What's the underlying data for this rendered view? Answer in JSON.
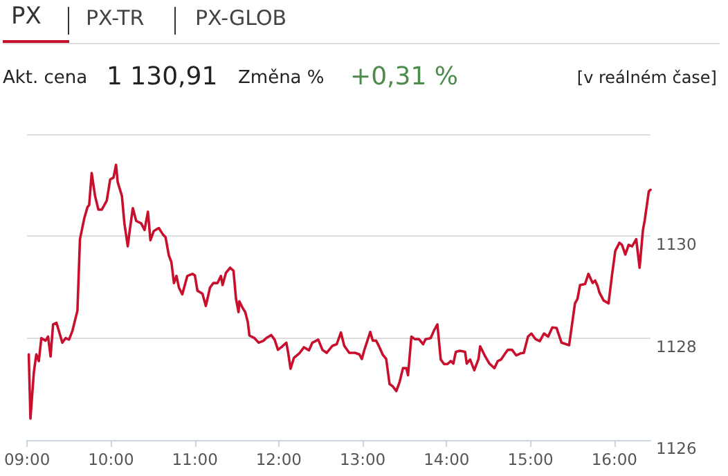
{
  "chart_data": {
    "type": "line",
    "annotations": [
      "PX",
      "PX-TR",
      "PX-GLOB",
      "Akt. cena",
      "1 130,91",
      "Změna %",
      "+0,31 %",
      "[v reálném čase]"
    ],
    "x": [
      9.02,
      9.04,
      9.08,
      9.11,
      9.14,
      9.17,
      9.22,
      9.25,
      9.28,
      9.31,
      9.35,
      9.42,
      9.46,
      9.5,
      9.54,
      9.6,
      9.63,
      9.68,
      9.72,
      9.74,
      9.77,
      9.81,
      9.85,
      9.89,
      9.95,
      9.99,
      10.03,
      10.06,
      10.08,
      10.13,
      10.16,
      10.2,
      10.22,
      10.26,
      10.3,
      10.36,
      10.4,
      10.44,
      10.47,
      10.51,
      10.57,
      10.62,
      10.65,
      10.69,
      10.72,
      10.75,
      10.78,
      10.81,
      10.85,
      10.91,
      10.97,
      11.0,
      11.03,
      11.09,
      11.13,
      11.18,
      11.22,
      11.27,
      11.31,
      11.33,
      11.37,
      11.42,
      11.46,
      11.49,
      11.52,
      11.53,
      11.57,
      11.6,
      11.63,
      11.65,
      11.71,
      11.76,
      11.82,
      11.85,
      11.91,
      11.95,
      11.99,
      12.03,
      12.09,
      12.11,
      12.14,
      12.18,
      12.25,
      12.3,
      12.36,
      12.4,
      12.47,
      12.52,
      12.57,
      12.64,
      12.69,
      12.74,
      12.78,
      12.84,
      12.91,
      12.96,
      12.99,
      13.02,
      13.09,
      13.12,
      13.16,
      13.2,
      13.24,
      13.28,
      13.32,
      13.36,
      13.4,
      13.44,
      13.48,
      13.52,
      13.54,
      13.58,
      13.62,
      13.67,
      13.72,
      13.75,
      13.81,
      13.85,
      13.89,
      13.93,
      13.97,
      14.01,
      14.05,
      14.08,
      14.11,
      14.16,
      14.22,
      14.24,
      14.28,
      14.33,
      14.38,
      14.4,
      14.46,
      14.51,
      14.57,
      14.61,
      14.65,
      14.69,
      14.73,
      14.78,
      14.83,
      14.88,
      14.92,
      14.97,
      15.01,
      15.06,
      15.11,
      15.16,
      15.21,
      15.26,
      15.31,
      15.37,
      15.46,
      15.53,
      15.56,
      15.59,
      15.65,
      15.69,
      15.74,
      15.77,
      15.8,
      15.82,
      15.87,
      15.93,
      15.97,
      16.01,
      16.06,
      16.09,
      16.13,
      16.17,
      16.21,
      16.26,
      16.3,
      16.34,
      16.36,
      16.41,
      16.43
    ],
    "series": [
      {
        "color": "#c8102e",
        "values": [
          1127.68,
          1126.42,
          1127.32,
          1127.68,
          1127.55,
          1128.0,
          1127.95,
          1128.03,
          1127.64,
          1128.27,
          1128.3,
          1127.91,
          1128.0,
          1127.97,
          1128.14,
          1128.54,
          1129.94,
          1130.34,
          1130.57,
          1130.61,
          1131.24,
          1130.79,
          1130.52,
          1130.52,
          1130.7,
          1131.11,
          1131.15,
          1131.4,
          1131.06,
          1130.79,
          1130.25,
          1129.8,
          1130.07,
          1130.55,
          1130.3,
          1130.25,
          1130.12,
          1130.48,
          1129.92,
          1130.1,
          1130.16,
          1130.03,
          1129.98,
          1129.62,
          1129.49,
          1129.08,
          1129.22,
          1128.99,
          1128.86,
          1129.22,
          1129.26,
          1129.23,
          1128.93,
          1128.87,
          1128.63,
          1128.99,
          1129.08,
          1129.08,
          1129.22,
          1129.04,
          1129.28,
          1129.38,
          1129.32,
          1128.77,
          1128.51,
          1128.72,
          1128.59,
          1128.51,
          1128.32,
          1128.05,
          1128.0,
          1127.91,
          1127.95,
          1128.0,
          1128.06,
          1127.97,
          1127.77,
          1127.82,
          1127.91,
          1127.73,
          1127.4,
          1127.61,
          1127.71,
          1127.82,
          1127.76,
          1127.91,
          1127.97,
          1127.77,
          1127.71,
          1127.85,
          1127.88,
          1128.11,
          1127.85,
          1127.71,
          1127.71,
          1127.68,
          1127.59,
          1127.77,
          1128.12,
          1127.95,
          1127.95,
          1127.82,
          1127.67,
          1127.59,
          1127.1,
          1127.05,
          1126.96,
          1127.14,
          1127.41,
          1127.41,
          1127.27,
          1128.03,
          1127.98,
          1127.98,
          1127.88,
          1127.98,
          1128.0,
          1128.15,
          1128.27,
          1127.58,
          1127.49,
          1127.49,
          1127.55,
          1127.5,
          1127.73,
          1127.75,
          1127.73,
          1127.5,
          1127.58,
          1127.37,
          1127.59,
          1127.84,
          1127.64,
          1127.5,
          1127.41,
          1127.55,
          1127.58,
          1127.68,
          1127.77,
          1127.77,
          1127.66,
          1127.7,
          1127.71,
          1128.03,
          1128.09,
          1127.98,
          1127.94,
          1128.09,
          1128.03,
          1128.21,
          1128.2,
          1127.91,
          1127.86,
          1128.68,
          1128.77,
          1129.04,
          1129.06,
          1129.26,
          1129.08,
          1129.13,
          1129.02,
          1128.9,
          1128.74,
          1128.68,
          1129.22,
          1129.71,
          1129.87,
          1129.83,
          1129.64,
          1129.83,
          1129.8,
          1129.94,
          1129.38,
          1130.12,
          1130.3,
          1130.88,
          1130.91
        ]
      }
    ],
    "xlim": [
      9,
      16.43
    ],
    "xticks": [
      {
        "value": 9,
        "label": "09:00"
      },
      {
        "value": 10,
        "label": "10:00"
      },
      {
        "value": 11,
        "label": "11:00"
      },
      {
        "value": 12,
        "label": "12:00"
      },
      {
        "value": 13,
        "label": "13:00"
      },
      {
        "value": 14,
        "label": "14:00"
      },
      {
        "value": 15,
        "label": "15:00"
      },
      {
        "value": 16,
        "label": "16:00"
      }
    ],
    "ylim": [
      1126,
      1132
    ],
    "yticks": [
      1126,
      1128,
      1130,
      {
        "value": 1132,
        "label": null
      }
    ],
    "grid": "y",
    "marker": "none",
    "line_style": "solid"
  }
}
